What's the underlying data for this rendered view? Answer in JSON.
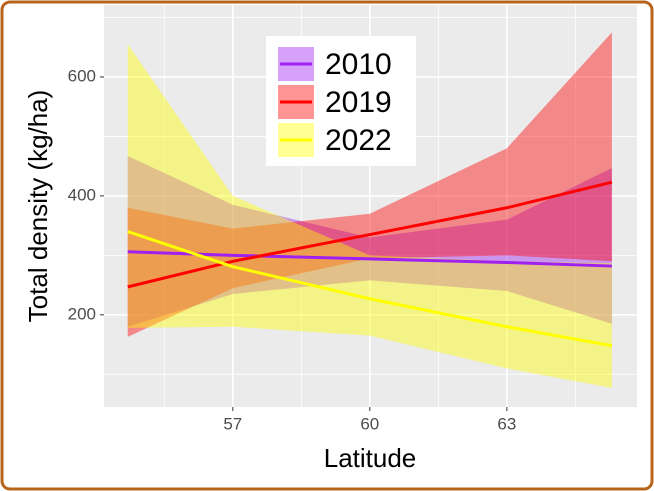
{
  "chart_data": {
    "type": "ribbon-line",
    "x_label": "Latitude",
    "y_label": "Total density (kg/ha)",
    "x": [
      54.7,
      57,
      60,
      63,
      65.3
    ],
    "series": [
      {
        "name": "2010",
        "color": "#a020f0",
        "values": [
          306,
          300,
          294,
          288,
          282
        ],
        "lower": [
          180,
          235,
          258,
          240,
          185
        ],
        "upper": [
          467,
          385,
          330,
          360,
          447
        ]
      },
      {
        "name": "2019",
        "color": "#ff0000",
        "values": [
          247,
          290,
          335,
          380,
          423
        ],
        "lower": [
          163,
          245,
          295,
          300,
          290
        ],
        "upper": [
          380,
          345,
          370,
          480,
          675
        ]
      },
      {
        "name": "2022",
        "color": "#ffff00",
        "values": [
          340,
          281,
          227,
          180,
          148
        ],
        "lower": [
          178,
          180,
          165,
          110,
          77
        ],
        "upper": [
          655,
          400,
          300,
          290,
          287
        ]
      }
    ],
    "xlim": [
      54.18,
      65.85
    ],
    "ylim": [
      45,
      721
    ],
    "xticks": [
      57,
      60,
      63
    ],
    "yticks": [
      200,
      400,
      600
    ],
    "grid": true,
    "legend_position": "top"
  }
}
